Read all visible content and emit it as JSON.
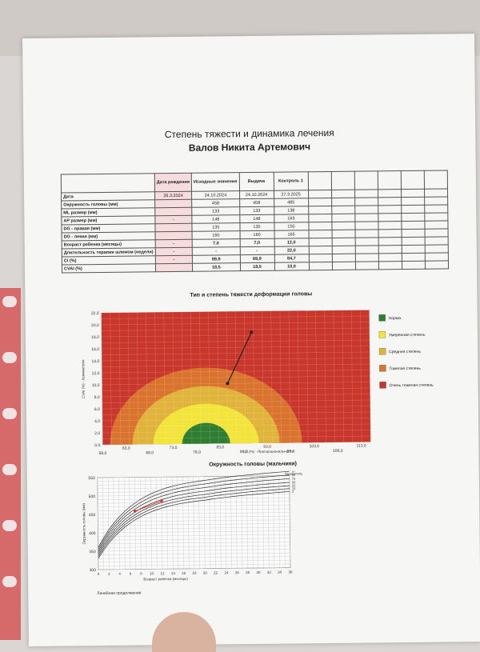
{
  "document": {
    "title": "Степень тяжести и динамика лечения",
    "patient": "Валов Никита Артемович"
  },
  "table": {
    "headers": [
      "Дата рождения",
      "Исходные значения",
      "Выдача",
      "Контроль 1"
    ],
    "rows": [
      {
        "label": "Дата",
        "values": [
          "26.3.2024",
          "24.10.2024",
          "24.10.2024",
          "27.3.2025"
        ]
      },
      {
        "label": "Окружность головы (мм)",
        "values": [
          "",
          "458",
          "458",
          "485"
        ]
      },
      {
        "label": "ML размер (мм)",
        "values": [
          "",
          "133",
          "133",
          "138"
        ]
      },
      {
        "label": "AP размер (мм)",
        "values": [
          "-",
          "148",
          "148",
          "163"
        ]
      },
      {
        "label": "DG - правая (мм)",
        "values": [
          "",
          "135",
          "135",
          "150"
        ]
      },
      {
        "label": "DG - левая (мм)",
        "values": [
          "",
          "160",
          "160",
          "165"
        ]
      },
      {
        "label": "Возраст ребенка (месяцы)",
        "values": [
          "-",
          "7,0",
          "7,0",
          "12,0"
        ]
      },
      {
        "label": "Длительность терапии шлемом (недели)",
        "values": [
          "-",
          "-",
          "-",
          "22,0"
        ]
      },
      {
        "label": "CI (%)",
        "values": [
          "-",
          "89,9",
          "89,9",
          "84,7"
        ]
      },
      {
        "label": "CVAI (%)",
        "values": [
          "",
          "18,5",
          "18,5",
          "10,0"
        ]
      }
    ]
  },
  "severity_chart": {
    "title": "Тип и степень тяжести деформации головы",
    "ylabel": "CVAI (%) - Асимметрия",
    "xlabel": "CI (%) - Пропорциональность",
    "legend": [
      {
        "label": "Норма",
        "color": "#2e7d32"
      },
      {
        "label": "Умеренная степень",
        "color": "#f2e43a"
      },
      {
        "label": "Средняя степень",
        "color": "#e0b33a"
      },
      {
        "label": "Тяжелая степень",
        "color": "#d9732e"
      },
      {
        "label": "Очень тяжелая степень",
        "color": "#c9372c"
      }
    ]
  },
  "growth_chart": {
    "title": "Окружность головы (мальчики)",
    "ylabel": "Окружность головы (мм)",
    "xlabel": "Возраст ребенка (месяцы)",
    "percentile_label": "Процентиль",
    "footnote": "Линейная продолжение"
  },
  "chart_data": [
    {
      "type": "scatter",
      "title": "Тип и степень тяжести деформации головы",
      "xlabel": "CI (%) - Пропорциональность",
      "ylabel": "CVAI (%) - Асимметрия",
      "xlim": [
        58,
        115
      ],
      "ylim": [
        0,
        22
      ],
      "x_ticks": [
        "58,0",
        "63,0",
        "68,0",
        "73,0",
        "78,0",
        "83,0",
        "88,0",
        "93,0",
        "98,0",
        "103,0",
        "108,0",
        "113,0"
      ],
      "y_ticks": [
        "0,0",
        "2,0",
        "4,0",
        "6,0",
        "8,0",
        "10,0",
        "12,0",
        "14,0",
        "16,0",
        "18,0",
        "20,0",
        "22,0"
      ],
      "points": [
        {
          "x": 89.9,
          "y": 18.5
        },
        {
          "x": 84.7,
          "y": 10.0
        }
      ],
      "grid": true,
      "legend_position": "right"
    },
    {
      "type": "line",
      "title": "Окружность головы (мальчики)",
      "xlabel": "Возраст ребенка (месяцы)",
      "ylabel": "Окружность головы (мм)",
      "x_ticks": [
        "0",
        "2",
        "4",
        "6",
        "8",
        "10",
        "12",
        "14",
        "16",
        "18",
        "20",
        "22",
        "24",
        "26",
        "28",
        "30",
        "32",
        "34",
        "36"
      ],
      "y_ticks": [
        "300",
        "350",
        "400",
        "450",
        "500",
        "550"
      ],
      "xlim": [
        0,
        36
      ],
      "ylim": [
        300,
        550
      ],
      "percentiles": [
        "97",
        "90",
        "75",
        "50",
        "25",
        "10",
        "3"
      ],
      "patient": [
        {
          "x": 7,
          "y": 458
        },
        {
          "x": 12,
          "y": 485
        }
      ],
      "grid": true
    }
  ]
}
